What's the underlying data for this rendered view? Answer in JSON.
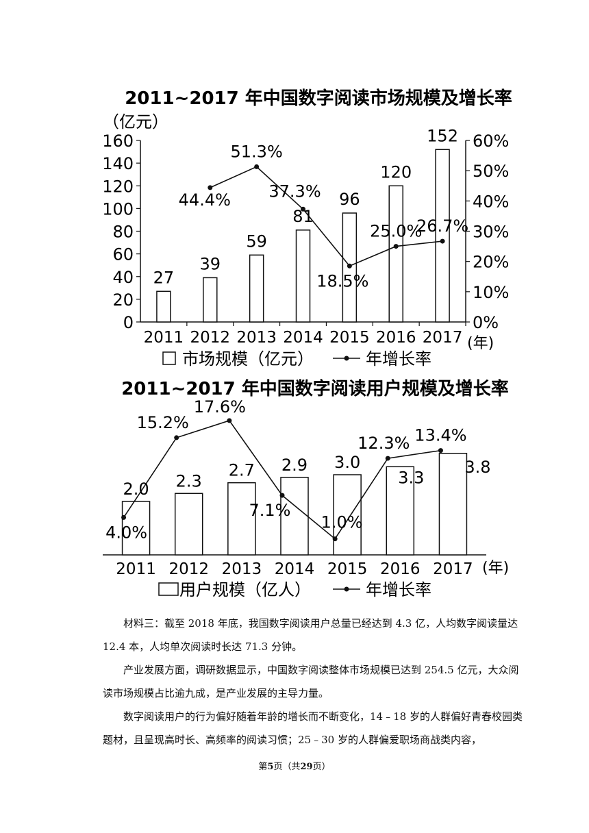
{
  "chart_data": [
    {
      "type": "bar",
      "title": "2011~2017 年中国数字阅读市场规模及增长率",
      "ylabel": "（亿元）",
      "y2tick_labels": [
        "0%",
        "10%",
        "20%",
        "30%",
        "40%",
        "50%",
        "60%"
      ],
      "xunit": "(年)",
      "categories": [
        "2011",
        "2012",
        "2013",
        "2014",
        "2015",
        "2016",
        "2017"
      ],
      "series": [
        {
          "name": "市场规模（亿元）",
          "kind": "bar",
          "values": [
            27,
            39,
            59,
            81,
            96,
            120,
            152
          ],
          "labels": [
            "27",
            "39",
            "59",
            "81",
            "96",
            "120",
            "152"
          ]
        },
        {
          "name": "年增长率",
          "kind": "line",
          "values": [
            null,
            44.4,
            51.3,
            37.3,
            18.5,
            25.0,
            26.7
          ],
          "labels": [
            "",
            "44.4%",
            "51.3%",
            "37.3%",
            "18.5%",
            "25.0%",
            "26.7%"
          ]
        }
      ],
      "ylim": [
        0,
        160
      ],
      "yticks": [
        0,
        20,
        40,
        60,
        80,
        100,
        120,
        140,
        160
      ],
      "y2lim": [
        0,
        60
      ],
      "legend_position": "bottom"
    },
    {
      "type": "bar",
      "title": "2011~2017 年中国数字阅读用户规模及增长率",
      "xunit": "(年)",
      "categories": [
        "2011",
        "2012",
        "2013",
        "2014",
        "2015",
        "2016",
        "2017"
      ],
      "series": [
        {
          "name": "用户规模（亿人）",
          "kind": "bar",
          "values": [
            2.0,
            2.3,
            2.7,
            2.9,
            3.0,
            3.3,
            3.8
          ],
          "labels": [
            "2.0",
            "2.3",
            "2.7",
            "2.9",
            "3.0",
            "3.3",
            "3.8"
          ]
        },
        {
          "name": "年增长率",
          "kind": "line",
          "values": [
            4.0,
            15.2,
            17.6,
            7.1,
            1.0,
            12.3,
            13.4
          ],
          "labels": [
            "4.0%",
            "15.2%",
            "17.6%",
            "7.1%",
            "1.0%",
            "12.3%",
            "13.4%"
          ]
        }
      ],
      "legend_position": "bottom"
    }
  ],
  "text": {
    "p1": "材料三：截至 2018 年底，我国数字阅读用户总量已经达到 4.3 亿，人均数字阅读量达 12.4 本，人均单次阅读时长达 71.3 分钟。",
    "p2": "产业发展方面，调研数据显示，中国数字阅读整体市场规模已达到 254.5 亿元，大众阅读市场规模占比逾九成，是产业发展的主导力量。",
    "p3": "数字阅读用户的行为偏好随着年龄的增长而不断变化，14﹣18 岁的人群偏好青春校园类题材，且呈现高时长、高频率的阅读习惯；25﹣30 岁的人群偏爱职场商战类内容，"
  },
  "footer": {
    "pre": "第",
    "page": "5",
    "mid": "页（共",
    "total": "29",
    "post": "页）"
  }
}
